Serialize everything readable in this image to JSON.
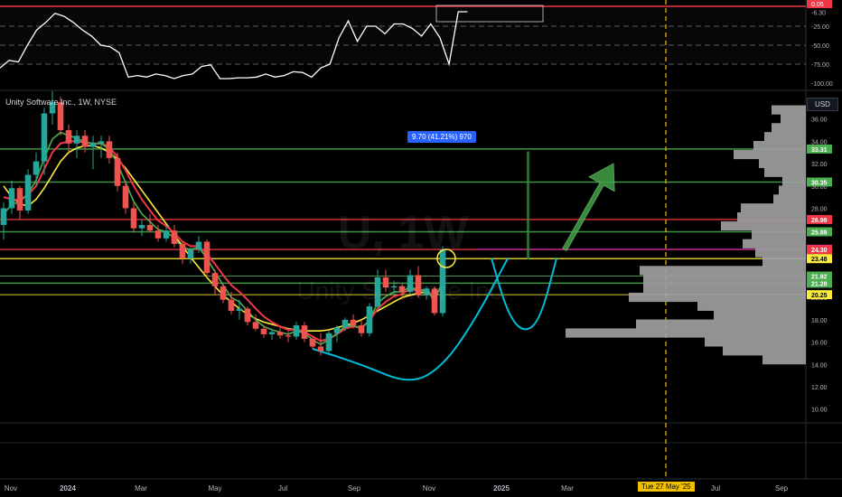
{
  "window": {
    "background": "#000000",
    "accent": "#2962ff"
  },
  "ticker_label": "Unity Software Inc., 1W, NYSE",
  "watermark": {
    "symbol": "U, 1W",
    "name": "Unity Software Inc."
  },
  "currency": "USD",
  "measure_label": "9.70 (41.21%) 970",
  "date_tag": "Tue 27 May '25",
  "colors": {
    "up": "#26a69a",
    "down": "#ef5350",
    "ma_fast": "#4caf50",
    "ma_mid": "#f23645",
    "ma_slow": "#ffeb3b",
    "cup": "#00bcd4",
    "hline_green": "#4caf50",
    "hline_red": "#f23645",
    "hline_yellow": "#ffeb3b",
    "current": "#9c27b0",
    "volume_profile": "#9e9e9e"
  },
  "chart_data": [
    {
      "type": "line",
      "name": "oscillator",
      "yticks": [
        "-6.30",
        "-25.00",
        "-50.00",
        "-75.00",
        "-100.00"
      ],
      "top_tag": "0.05",
      "ylim": [
        -100,
        0
      ],
      "values": [
        -80,
        -70,
        -72,
        -50,
        -30,
        -20,
        -8,
        -12,
        -20,
        -30,
        -38,
        -50,
        -52,
        -60,
        -92,
        -90,
        -92,
        -88,
        -90,
        -94,
        -90,
        -88,
        -78,
        -76,
        -94,
        -94,
        -93,
        -93,
        -92,
        -88,
        -92,
        -90,
        -85,
        -86,
        -92,
        -80,
        -75,
        -40,
        -18,
        -45,
        -25,
        -25,
        -35,
        -22,
        -22,
        -28,
        -38,
        -22,
        -40,
        -75,
        -6,
        -6
      ]
    },
    {
      "type": "candlestick",
      "name": "U 1W",
      "x_ticks": [
        "Nov",
        "2024",
        "Mar",
        "May",
        "Jul",
        "Sep",
        "Nov",
        "2025",
        "Mar",
        "Jul",
        "Sep"
      ],
      "y_ticks": [
        36.0,
        34.0,
        32.0,
        30.0,
        28.0,
        26.0,
        24.0,
        22.0,
        20.0,
        18.0,
        16.0,
        14.0,
        12.0,
        10.0
      ],
      "ylim": [
        9,
        38
      ],
      "price_tags": [
        {
          "label": "33.31",
          "value": 33.31,
          "color": "#4caf50"
        },
        {
          "label": "30.35",
          "value": 30.35,
          "color": "#4caf50"
        },
        {
          "label": "26.99",
          "value": 26.99,
          "color": "#f23645"
        },
        {
          "label": "25.89",
          "value": 25.89,
          "color": "#4caf50"
        },
        {
          "label": "24.33",
          "value": 24.33,
          "color": "#9c27b0"
        },
        {
          "label": "24.30",
          "value": 24.3,
          "color": "#f23645"
        },
        {
          "label": "23.48",
          "value": 23.48,
          "color": "#ffeb3b"
        },
        {
          "label": "21.92",
          "value": 21.92,
          "color": "#4caf50"
        },
        {
          "label": "21.28",
          "value": 21.28,
          "color": "#4caf50"
        },
        {
          "label": "20.25",
          "value": 20.25,
          "color": "#ffeb3b"
        }
      ],
      "candles": [
        {
          "o": 26.5,
          "h": 28.5,
          "l": 25.2,
          "c": 28.0
        },
        {
          "o": 28.0,
          "h": 30.5,
          "l": 27.5,
          "c": 29.8
        },
        {
          "o": 29.8,
          "h": 30.0,
          "l": 27.0,
          "c": 27.8
        },
        {
          "o": 27.8,
          "h": 31.5,
          "l": 27.5,
          "c": 31.0
        },
        {
          "o": 31.0,
          "h": 33.0,
          "l": 30.0,
          "c": 32.2
        },
        {
          "o": 32.2,
          "h": 37.0,
          "l": 31.0,
          "c": 36.5
        },
        {
          "o": 36.5,
          "h": 38.5,
          "l": 35.5,
          "c": 37.5
        },
        {
          "o": 37.5,
          "h": 38.0,
          "l": 34.5,
          "c": 35.0
        },
        {
          "o": 35.0,
          "h": 35.5,
          "l": 33.0,
          "c": 33.8
        },
        {
          "o": 33.8,
          "h": 35.0,
          "l": 32.5,
          "c": 34.5
        },
        {
          "o": 34.5,
          "h": 35.0,
          "l": 33.0,
          "c": 33.5
        },
        {
          "o": 33.5,
          "h": 34.5,
          "l": 31.5,
          "c": 33.8
        },
        {
          "o": 33.8,
          "h": 34.5,
          "l": 32.5,
          "c": 34.0
        },
        {
          "o": 34.0,
          "h": 34.5,
          "l": 32.0,
          "c": 32.5
        },
        {
          "o": 32.5,
          "h": 33.0,
          "l": 29.5,
          "c": 30.0
        },
        {
          "o": 30.0,
          "h": 30.5,
          "l": 27.5,
          "c": 28.0
        },
        {
          "o": 28.0,
          "h": 28.5,
          "l": 25.8,
          "c": 26.2
        },
        {
          "o": 26.2,
          "h": 27.0,
          "l": 25.5,
          "c": 26.5
        },
        {
          "o": 26.5,
          "h": 27.5,
          "l": 25.8,
          "c": 26.0
        },
        {
          "o": 26.0,
          "h": 26.5,
          "l": 25.0,
          "c": 25.3
        },
        {
          "o": 25.3,
          "h": 26.5,
          "l": 25.0,
          "c": 26.0
        },
        {
          "o": 26.0,
          "h": 26.5,
          "l": 24.5,
          "c": 24.8
        },
        {
          "o": 24.8,
          "h": 25.0,
          "l": 23.0,
          "c": 23.5
        },
        {
          "o": 23.5,
          "h": 24.5,
          "l": 23.0,
          "c": 24.3
        },
        {
          "o": 24.3,
          "h": 25.5,
          "l": 24.0,
          "c": 25.0
        },
        {
          "o": 25.0,
          "h": 25.2,
          "l": 21.8,
          "c": 22.2
        },
        {
          "o": 22.2,
          "h": 22.5,
          "l": 20.2,
          "c": 21.0
        },
        {
          "o": 21.0,
          "h": 21.2,
          "l": 19.5,
          "c": 19.8
        },
        {
          "o": 19.8,
          "h": 20.5,
          "l": 18.5,
          "c": 18.8
        },
        {
          "o": 18.8,
          "h": 19.8,
          "l": 18.0,
          "c": 19.0
        },
        {
          "o": 19.0,
          "h": 19.2,
          "l": 17.5,
          "c": 17.8
        },
        {
          "o": 17.8,
          "h": 18.5,
          "l": 17.0,
          "c": 17.2
        },
        {
          "o": 17.2,
          "h": 17.5,
          "l": 16.4,
          "c": 16.7
        },
        {
          "o": 16.7,
          "h": 17.2,
          "l": 16.2,
          "c": 16.9
        },
        {
          "o": 16.9,
          "h": 17.5,
          "l": 16.3,
          "c": 16.6
        },
        {
          "o": 16.6,
          "h": 17.0,
          "l": 16.0,
          "c": 16.5
        },
        {
          "o": 16.5,
          "h": 17.8,
          "l": 16.2,
          "c": 17.5
        },
        {
          "o": 17.5,
          "h": 17.8,
          "l": 16.0,
          "c": 16.3
        },
        {
          "o": 16.3,
          "h": 16.5,
          "l": 15.4,
          "c": 15.6
        },
        {
          "o": 15.6,
          "h": 16.8,
          "l": 14.8,
          "c": 15.2
        },
        {
          "o": 15.2,
          "h": 17.0,
          "l": 15.0,
          "c": 16.8
        },
        {
          "o": 16.8,
          "h": 17.5,
          "l": 16.0,
          "c": 17.3
        },
        {
          "o": 17.3,
          "h": 18.2,
          "l": 17.0,
          "c": 18.0
        },
        {
          "o": 18.0,
          "h": 18.5,
          "l": 17.2,
          "c": 17.5
        },
        {
          "o": 17.5,
          "h": 18.0,
          "l": 16.5,
          "c": 16.8
        },
        {
          "o": 16.8,
          "h": 19.5,
          "l": 16.5,
          "c": 19.2
        },
        {
          "o": 19.2,
          "h": 22.5,
          "l": 19.0,
          "c": 21.8
        },
        {
          "o": 21.8,
          "h": 22.5,
          "l": 20.5,
          "c": 20.9
        },
        {
          "o": 20.9,
          "h": 21.5,
          "l": 20.2,
          "c": 21.0
        },
        {
          "o": 21.0,
          "h": 21.2,
          "l": 19.8,
          "c": 20.5
        },
        {
          "o": 20.5,
          "h": 22.5,
          "l": 20.3,
          "c": 22.0
        },
        {
          "o": 22.0,
          "h": 22.8,
          "l": 20.0,
          "c": 20.2
        },
        {
          "o": 20.2,
          "h": 21.0,
          "l": 19.8,
          "c": 20.8
        },
        {
          "o": 20.8,
          "h": 21.0,
          "l": 18.4,
          "c": 18.6
        },
        {
          "o": 18.6,
          "h": 24.6,
          "l": 18.3,
          "c": 24.3
        }
      ],
      "ma_slow": [
        30.0,
        29.0,
        28.4,
        28.2,
        28.8,
        29.8,
        31.0,
        32.2,
        33.0,
        33.4,
        33.6,
        33.6,
        33.4,
        33.0,
        32.4,
        31.6,
        30.6,
        29.6,
        28.6,
        27.6,
        26.6,
        25.6,
        24.6,
        23.6,
        22.7,
        21.8,
        21.0,
        20.2,
        19.6,
        19.0,
        18.5,
        18.1,
        17.8,
        17.6,
        17.4,
        17.2,
        17.1,
        17.0,
        17.0,
        17.0,
        17.1,
        17.3,
        17.5,
        17.7,
        18.0,
        18.4,
        18.8,
        19.2,
        19.6,
        20.0,
        20.2,
        20.4,
        20.5
      ],
      "ma_fast": [
        27.5,
        28.3,
        28.6,
        29.3,
        30.5,
        32.5,
        34.2,
        34.8,
        34.5,
        34.3,
        33.9,
        33.8,
        33.8,
        33.3,
        32.0,
        30.3,
        28.6,
        27.5,
        26.8,
        26.1,
        25.9,
        25.3,
        24.5,
        24.3,
        24.5,
        23.5,
        22.3,
        21.1,
        20.0,
        19.6,
        18.8,
        18.0,
        17.4,
        17.1,
        16.9,
        16.7,
        17.0,
        16.8,
        16.2,
        15.8,
        16.2,
        16.8,
        17.4,
        17.5,
        17.2,
        18.0,
        19.5,
        20.1,
        20.5,
        20.5,
        21.0,
        20.6,
        20.7,
        19.7,
        21.5
      ],
      "ma_mid": [
        29.0,
        28.8,
        28.7,
        29.2,
        30.0,
        31.5,
        33.0,
        33.8,
        34.0,
        34.0,
        33.9,
        33.8,
        33.8,
        33.5,
        32.6,
        31.4,
        30.0,
        28.8,
        27.8,
        26.9,
        26.4,
        25.8,
        25.0,
        24.6,
        24.6,
        23.9,
        23.0,
        22.0,
        21.1,
        20.5,
        19.8,
        19.0,
        18.3,
        17.8,
        17.4,
        17.1,
        17.1,
        16.9,
        16.5,
        16.1,
        16.3,
        16.7,
        17.2,
        17.4,
        17.3,
        17.9,
        19.0,
        19.6,
        20.1,
        20.3,
        20.8,
        20.6,
        20.7,
        20.0,
        21.2
      ],
      "volume_profile": [
        {
          "price": 36.8,
          "w": 38
        },
        {
          "price": 36.0,
          "w": 28
        },
        {
          "price": 35.2,
          "w": 38
        },
        {
          "price": 34.4,
          "w": 46
        },
        {
          "price": 33.6,
          "w": 58
        },
        {
          "price": 32.8,
          "w": 80
        },
        {
          "price": 32.0,
          "w": 52
        },
        {
          "price": 31.2,
          "w": 46
        },
        {
          "price": 30.4,
          "w": 26
        },
        {
          "price": 29.6,
          "w": 30
        },
        {
          "price": 28.8,
          "w": 36
        },
        {
          "price": 28.0,
          "w": 72
        },
        {
          "price": 27.2,
          "w": 76
        },
        {
          "price": 26.4,
          "w": 94
        },
        {
          "price": 25.6,
          "w": 60
        },
        {
          "price": 24.8,
          "w": 70
        },
        {
          "price": 24.0,
          "w": 56
        },
        {
          "price": 23.2,
          "w": 48
        },
        {
          "price": 22.4,
          "w": 184
        },
        {
          "price": 21.6,
          "w": 180
        },
        {
          "price": 20.8,
          "w": 180
        },
        {
          "price": 20.0,
          "w": 196
        },
        {
          "price": 19.2,
          "w": 120
        },
        {
          "price": 18.4,
          "w": 102
        },
        {
          "price": 17.6,
          "w": 188
        },
        {
          "price": 16.8,
          "w": 266
        },
        {
          "price": 16.0,
          "w": 112
        },
        {
          "price": 15.2,
          "w": 92
        },
        {
          "price": 14.4,
          "w": 48
        }
      ],
      "cup1": [
        [
          38,
          15.4
        ],
        [
          44,
          14.0
        ],
        [
          50,
          12.2
        ],
        [
          54,
          13.8
        ],
        [
          58,
          18.0
        ],
        [
          62,
          23.5
        ]
      ],
      "cup2": [
        [
          60,
          23.5
        ],
        [
          62,
          18.5
        ],
        [
          64,
          16.8
        ],
        [
          66,
          18.0
        ],
        [
          68,
          23.5
        ]
      ],
      "target_arrow": {
        "from": [
          69,
          24.3
        ],
        "to": [
          75,
          32.0
        ]
      },
      "measure_from": [
        64.5,
        23.4
      ],
      "measure_to": [
        64.5,
        33.1
      ]
    }
  ]
}
